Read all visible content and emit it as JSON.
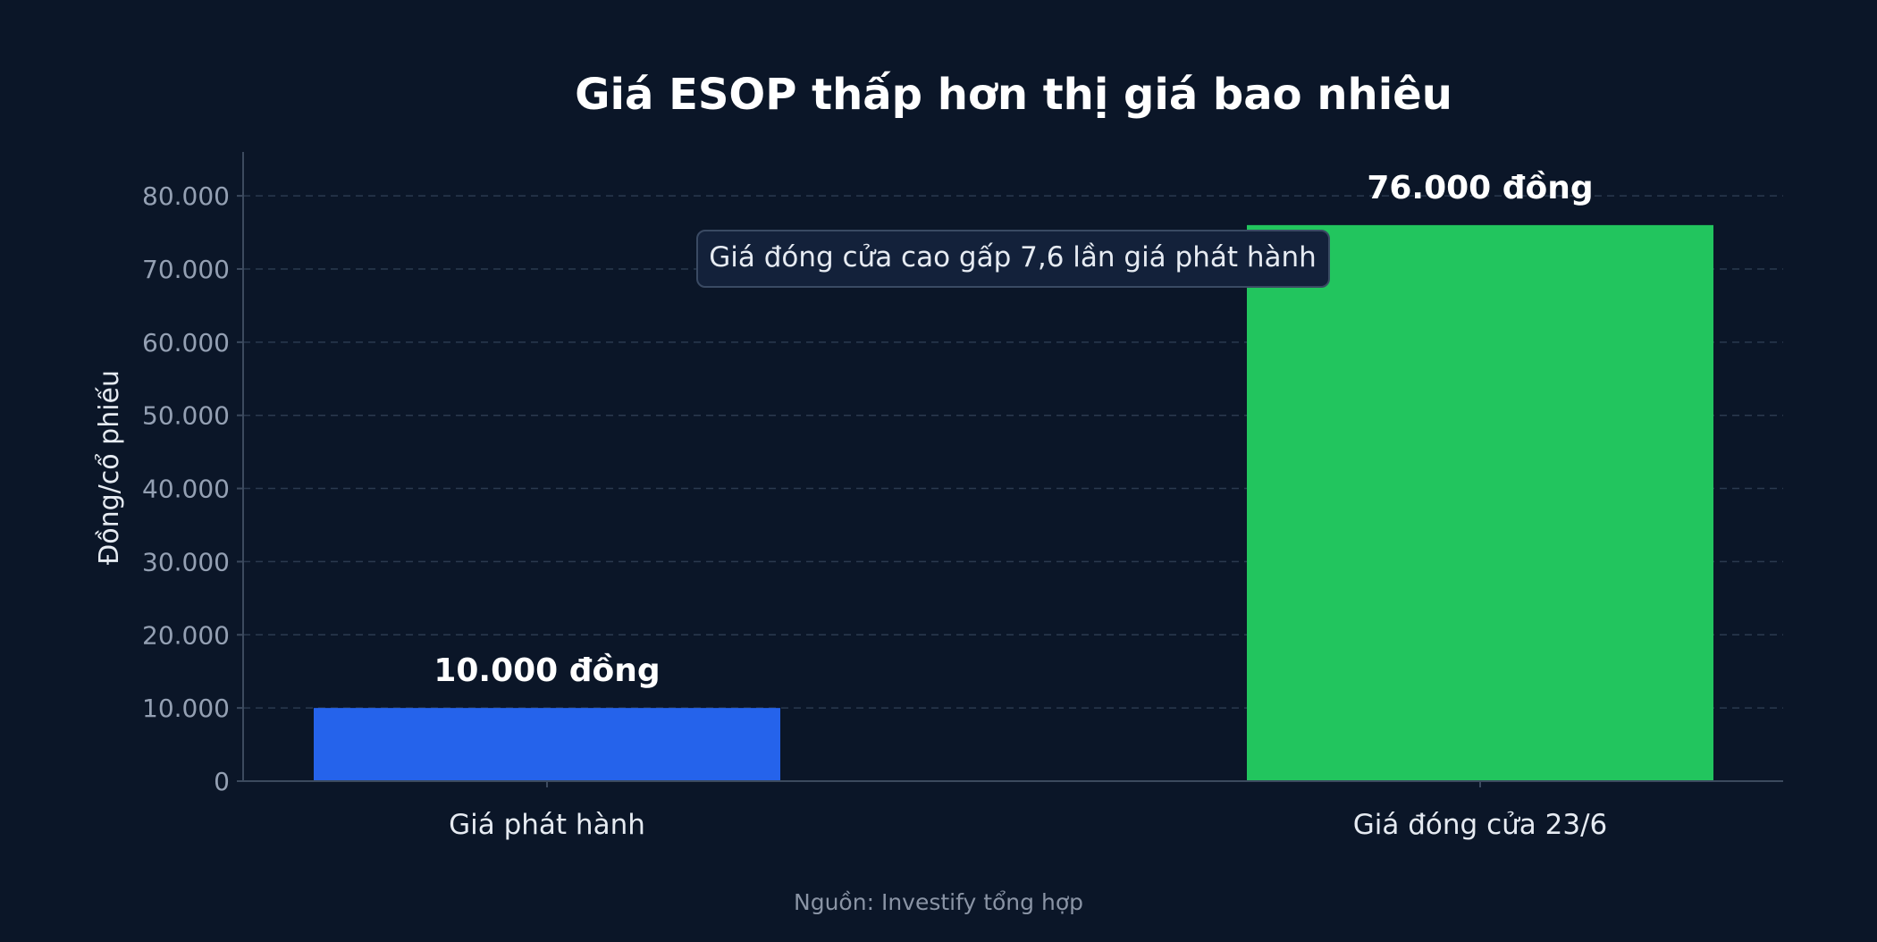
{
  "colors": {
    "background": "#0b1628",
    "grid": "#2b3a4f",
    "axis": "#3c4a5e",
    "tick_text": "#94a0b3",
    "label_text": "#e6ebf2",
    "title_text": "#ffffff",
    "source_text": "#8a94a5",
    "annotation_fill": "#13213a",
    "annotation_stroke": "#3a4a63"
  },
  "chart_data": {
    "type": "bar",
    "title": "Giá ESOP thấp hơn thị giá bao nhiêu",
    "xlabel": "",
    "ylabel": "Đồng/cổ phiếu",
    "categories": [
      "Giá phát hành",
      "Giá đóng cửa 23/6"
    ],
    "values": [
      10000,
      76000
    ],
    "bar_colors": [
      "#2563eb",
      "#22c55e"
    ],
    "data_labels": [
      "10.000 đồng",
      "76.000 đồng"
    ],
    "ylim": [
      0,
      86000
    ],
    "yticks": [
      0,
      10000,
      20000,
      30000,
      40000,
      50000,
      60000,
      70000,
      80000
    ],
    "ytick_labels": [
      "0",
      "10.000",
      "20.000",
      "30.000",
      "40.000",
      "50.000",
      "60.000",
      "70.000",
      "80.000"
    ],
    "grid": true,
    "annotation": "Giá đóng cửa cao gấp 7,6 lần giá phát hành",
    "source": "Nguồn: Investify tổng hợp"
  }
}
